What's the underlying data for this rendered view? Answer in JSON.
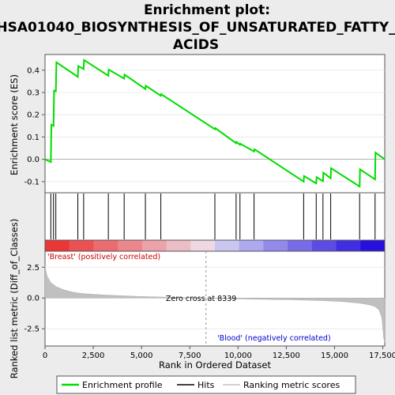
{
  "chart_data": {
    "type": "line",
    "title_lines": [
      "Enrichment plot:",
      "HSA01040_BIOSYNTHESIS_OF_UNSATURATED_FATTY_",
      "ACIDS"
    ],
    "top_panel": {
      "ylabel": "Enrichment score (ES)",
      "ylim": [
        -0.15,
        0.47
      ],
      "yticks": [
        -0.1,
        0.0,
        0.1,
        0.2,
        0.3,
        0.4
      ],
      "ytick_labels": [
        "-0.1",
        "0.0",
        "0.1",
        "0.2",
        "0.3",
        "0.4"
      ],
      "es_line": {
        "name": "Enrichment profile",
        "color": "#00dd00",
        "x": [
          0,
          300,
          330,
          440,
          470,
          560,
          590,
          1700,
          1720,
          2000,
          2020,
          3280,
          3300,
          4100,
          4120,
          5200,
          5220,
          6000,
          6020,
          8800,
          8820,
          9900,
          9920,
          10100,
          10120,
          10830,
          10850,
          13400,
          13420,
          14050,
          14070,
          14400,
          14420,
          14800,
          14820,
          16300,
          16320,
          17100,
          17120,
          17600
        ],
        "y": [
          0.0,
          -0.012,
          0.155,
          0.15,
          0.308,
          0.305,
          0.435,
          0.37,
          0.418,
          0.405,
          0.445,
          0.375,
          0.402,
          0.362,
          0.38,
          0.315,
          0.33,
          0.285,
          0.292,
          0.135,
          0.14,
          0.072,
          0.078,
          0.065,
          0.07,
          0.035,
          0.045,
          -0.1,
          -0.075,
          -0.108,
          -0.08,
          -0.098,
          -0.06,
          -0.085,
          -0.04,
          -0.122,
          -0.045,
          -0.09,
          0.03,
          0.0
        ]
      }
    },
    "hits": {
      "name": "Hits",
      "positions": [
        300,
        440,
        560,
        1700,
        2000,
        3280,
        4100,
        5200,
        6000,
        8800,
        9900,
        10100,
        10830,
        13400,
        14050,
        14400,
        14800,
        16300,
        17100
      ]
    },
    "bottom_panel": {
      "ylabel": "Ranked list metric (Diff_of_Classes)",
      "xlabel": "Rank in Ordered Dataset",
      "xlim": [
        0,
        17600
      ],
      "xticks": [
        0,
        2500,
        5000,
        7500,
        10000,
        12500,
        15000,
        17500
      ],
      "xtick_labels": [
        "0",
        "2,500",
        "5,000",
        "7,500",
        "10,000",
        "12,500",
        "15,000",
        "17,500"
      ],
      "ylim": [
        -3.9,
        3.8
      ],
      "yticks": [
        -2.5,
        0.0,
        2.5
      ],
      "ytick_labels": [
        "-2.5",
        "0.0",
        "2.5"
      ],
      "metric_curve": {
        "name": "Ranking metric scores",
        "color": "#c0c0c0",
        "x": [
          0,
          100,
          300,
          600,
          1000,
          1500,
          2000,
          3000,
          4000,
          5000,
          6000,
          7000,
          8339,
          9500,
          11000,
          13000,
          14500,
          15500,
          16300,
          16800,
          17100,
          17300,
          17450,
          17550,
          17600
        ],
        "y": [
          2.6,
          1.8,
          1.25,
          0.9,
          0.65,
          0.45,
          0.35,
          0.25,
          0.18,
          0.12,
          0.08,
          0.04,
          0.0,
          -0.05,
          -0.1,
          -0.15,
          -0.22,
          -0.3,
          -0.42,
          -0.55,
          -0.7,
          -0.95,
          -1.6,
          -3.3,
          -3.6
        ]
      },
      "zero_cross_label": "Zero cross at 8339",
      "zero_cross": 8339,
      "pos_class_label": "'Breast' (positively correlated)",
      "neg_class_label": "'Blood' (negatively correlated)"
    },
    "legend": {
      "entries": [
        {
          "label": "Enrichment profile",
          "color": "#00dd00"
        },
        {
          "label": "Hits",
          "color": "#000000"
        },
        {
          "label": "Ranking metric scores",
          "color": "#c0c0c0"
        }
      ]
    },
    "colors": {
      "pos_class": "#dd0000",
      "neg_class": "#0000dd",
      "background": "#ececec",
      "panel": "#ffffff"
    }
  }
}
